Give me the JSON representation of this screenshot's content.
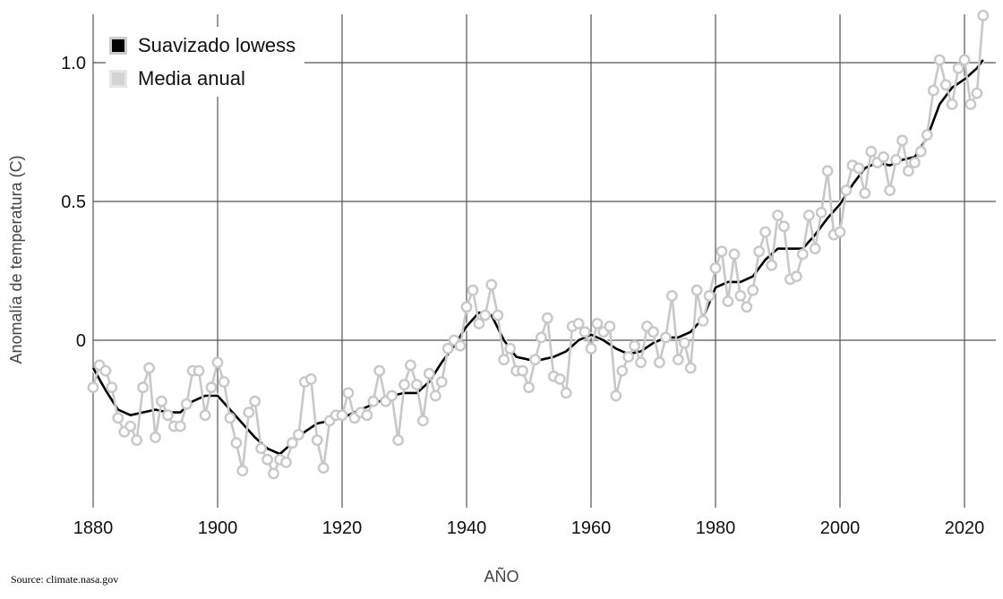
{
  "chart_data": {
    "type": "line",
    "title": "",
    "xlabel": "AÑO",
    "ylabel": "Anomalía de temperatura (C)",
    "source": "Source: climate.nasa.gov",
    "xlim": [
      1880,
      2023
    ],
    "ylim": [
      -0.58,
      1.2
    ],
    "x_ticks": [
      "1880",
      "1900",
      "1920",
      "1940",
      "1960",
      "1980",
      "2000",
      "2020"
    ],
    "y_ticks": [
      {
        "value": 0,
        "label": "0"
      },
      {
        "value": 0.5,
        "label": "0.5"
      },
      {
        "value": 1.0,
        "label": "1.0"
      }
    ],
    "grid": true,
    "legend_position": "top-left",
    "colors": {
      "lowess": "#000000",
      "annual": "#c8c8c8",
      "grid": "#555555"
    },
    "series": [
      {
        "name": "Media anual",
        "x": [
          1880,
          1881,
          1882,
          1883,
          1884,
          1885,
          1886,
          1887,
          1888,
          1889,
          1890,
          1891,
          1892,
          1893,
          1894,
          1895,
          1896,
          1897,
          1898,
          1899,
          1900,
          1901,
          1902,
          1903,
          1904,
          1905,
          1906,
          1907,
          1908,
          1909,
          1910,
          1911,
          1912,
          1913,
          1914,
          1915,
          1916,
          1917,
          1918,
          1919,
          1920,
          1921,
          1922,
          1923,
          1924,
          1925,
          1926,
          1927,
          1928,
          1929,
          1930,
          1931,
          1932,
          1933,
          1934,
          1935,
          1936,
          1937,
          1938,
          1939,
          1940,
          1941,
          1942,
          1943,
          1944,
          1945,
          1946,
          1947,
          1948,
          1949,
          1950,
          1951,
          1952,
          1953,
          1954,
          1955,
          1956,
          1957,
          1958,
          1959,
          1960,
          1961,
          1962,
          1963,
          1964,
          1965,
          1966,
          1967,
          1968,
          1969,
          1970,
          1971,
          1972,
          1973,
          1974,
          1975,
          1976,
          1977,
          1978,
          1979,
          1980,
          1981,
          1982,
          1983,
          1984,
          1985,
          1986,
          1987,
          1988,
          1989,
          1990,
          1991,
          1992,
          1993,
          1994,
          1995,
          1996,
          1997,
          1998,
          1999,
          2000,
          2001,
          2002,
          2003,
          2004,
          2005,
          2006,
          2007,
          2008,
          2009,
          2010,
          2011,
          2012,
          2013,
          2014,
          2015,
          2016,
          2017,
          2018,
          2019,
          2020,
          2021,
          2022,
          2023
        ],
        "values": [
          -0.17,
          -0.09,
          -0.11,
          -0.17,
          -0.28,
          -0.33,
          -0.31,
          -0.36,
          -0.17,
          -0.1,
          -0.35,
          -0.22,
          -0.27,
          -0.31,
          -0.31,
          -0.23,
          -0.11,
          -0.11,
          -0.27,
          -0.17,
          -0.08,
          -0.15,
          -0.28,
          -0.37,
          -0.47,
          -0.26,
          -0.22,
          -0.39,
          -0.43,
          -0.48,
          -0.43,
          -0.44,
          -0.37,
          -0.34,
          -0.15,
          -0.14,
          -0.36,
          -0.46,
          -0.29,
          -0.27,
          -0.27,
          -0.19,
          -0.28,
          -0.26,
          -0.27,
          -0.22,
          -0.11,
          -0.22,
          -0.2,
          -0.36,
          -0.16,
          -0.09,
          -0.16,
          -0.29,
          -0.12,
          -0.2,
          -0.15,
          -0.03,
          0.0,
          -0.02,
          0.12,
          0.18,
          0.06,
          0.09,
          0.2,
          0.09,
          -0.07,
          -0.03,
          -0.11,
          -0.11,
          -0.17,
          -0.07,
          0.01,
          0.08,
          -0.13,
          -0.14,
          -0.19,
          0.05,
          0.06,
          0.03,
          -0.03,
          0.06,
          0.03,
          0.05,
          -0.2,
          -0.11,
          -0.06,
          -0.02,
          -0.08,
          0.05,
          0.03,
          -0.08,
          0.01,
          0.16,
          -0.07,
          -0.01,
          -0.1,
          0.18,
          0.07,
          0.16,
          0.26,
          0.32,
          0.14,
          0.31,
          0.16,
          0.12,
          0.18,
          0.32,
          0.39,
          0.27,
          0.45,
          0.41,
          0.22,
          0.23,
          0.31,
          0.45,
          0.33,
          0.46,
          0.61,
          0.38,
          0.39,
          0.54,
          0.63,
          0.62,
          0.53,
          0.68,
          0.64,
          0.66,
          0.54,
          0.65,
          0.72,
          0.61,
          0.64,
          0.68,
          0.74,
          0.9,
          1.01,
          0.92,
          0.85,
          0.98,
          1.01,
          0.85,
          0.89,
          1.17
        ]
      },
      {
        "name": "Suavizado lowess",
        "x": [
          1880,
          1882,
          1884,
          1886,
          1888,
          1890,
          1892,
          1894,
          1896,
          1898,
          1900,
          1902,
          1904,
          1906,
          1908,
          1910,
          1912,
          1914,
          1916,
          1918,
          1920,
          1922,
          1924,
          1926,
          1928,
          1930,
          1932,
          1934,
          1936,
          1938,
          1940,
          1942,
          1944,
          1946,
          1948,
          1950,
          1952,
          1954,
          1956,
          1958,
          1960,
          1962,
          1964,
          1966,
          1968,
          1970,
          1972,
          1974,
          1976,
          1978,
          1980,
          1982,
          1984,
          1986,
          1988,
          1990,
          1992,
          1994,
          1996,
          1998,
          2000,
          2002,
          2004,
          2006,
          2008,
          2010,
          2012,
          2014,
          2016,
          2018,
          2020,
          2022,
          2023
        ],
        "values": [
          -0.1,
          -0.18,
          -0.25,
          -0.27,
          -0.26,
          -0.25,
          -0.26,
          -0.26,
          -0.22,
          -0.2,
          -0.2,
          -0.25,
          -0.3,
          -0.35,
          -0.39,
          -0.41,
          -0.37,
          -0.33,
          -0.3,
          -0.29,
          -0.28,
          -0.26,
          -0.24,
          -0.22,
          -0.2,
          -0.19,
          -0.19,
          -0.15,
          -0.08,
          -0.02,
          0.05,
          0.1,
          0.09,
          0.0,
          -0.06,
          -0.07,
          -0.07,
          -0.06,
          -0.04,
          0.0,
          0.02,
          0.0,
          -0.03,
          -0.05,
          -0.04,
          -0.01,
          0.01,
          0.01,
          0.03,
          0.08,
          0.19,
          0.21,
          0.21,
          0.23,
          0.29,
          0.33,
          0.33,
          0.33,
          0.38,
          0.44,
          0.49,
          0.56,
          0.62,
          0.64,
          0.63,
          0.65,
          0.66,
          0.73,
          0.85,
          0.91,
          0.94,
          0.98,
          1.01
        ]
      }
    ]
  }
}
